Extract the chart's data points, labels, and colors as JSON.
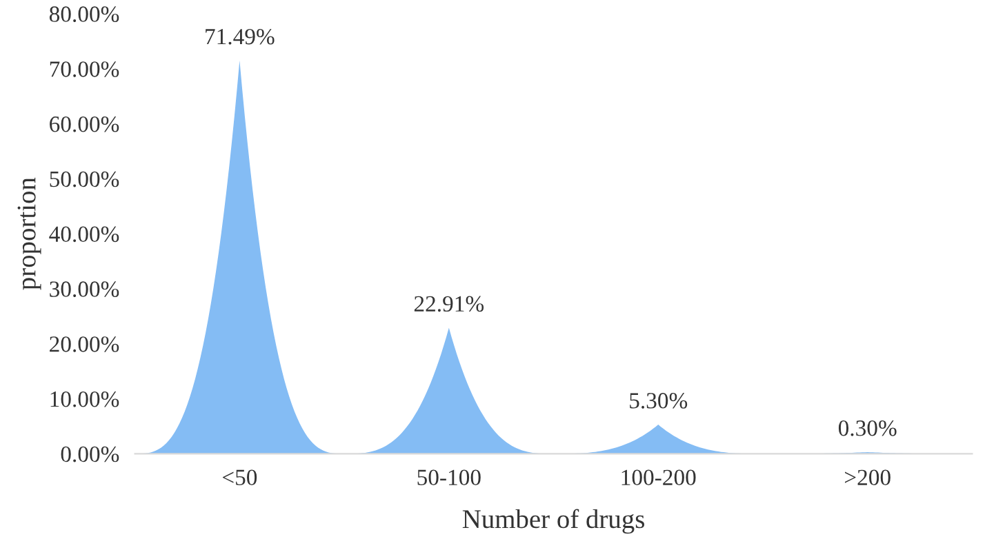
{
  "chart_data": {
    "type": "bar",
    "xlabel": "Number of drugs",
    "ylabel": "proportion",
    "categories": [
      "<50",
      "50-100",
      "100-200",
      ">200"
    ],
    "values": [
      71.49,
      22.91,
      5.3,
      0.3
    ],
    "value_labels": [
      "71.49%",
      "22.91%",
      "5.30%",
      "0.30%"
    ],
    "color": "#84bcf4",
    "ylim": [
      0,
      80
    ],
    "yticks": [
      {
        "value": 0,
        "label": "0.00%"
      },
      {
        "value": 10,
        "label": "10.00%"
      },
      {
        "value": 20,
        "label": "20.00%"
      },
      {
        "value": 30,
        "label": "30.00%"
      },
      {
        "value": 40,
        "label": "40.00%"
      },
      {
        "value": 50,
        "label": "50.00%"
      },
      {
        "value": 60,
        "label": "60.00%"
      },
      {
        "value": 70,
        "label": "70.00%"
      },
      {
        "value": 80,
        "label": "80.00%"
      }
    ],
    "grid": false
  }
}
